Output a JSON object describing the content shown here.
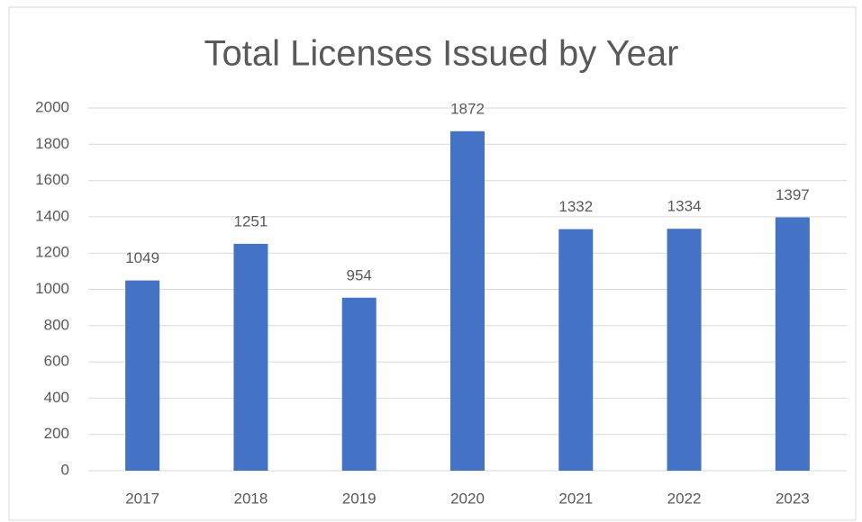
{
  "chart_data": {
    "type": "bar",
    "title": "Total Licenses Issued by Year",
    "categories": [
      "2017",
      "2018",
      "2019",
      "2020",
      "2021",
      "2022",
      "2023"
    ],
    "values": [
      1049,
      1251,
      954,
      1872,
      1332,
      1334,
      1397
    ],
    "color": "#4472c4",
    "ylim": [
      0,
      2000
    ],
    "yticks": [
      0,
      200,
      400,
      600,
      800,
      1000,
      1200,
      1400,
      1600,
      1800,
      2000
    ],
    "grid": true
  }
}
